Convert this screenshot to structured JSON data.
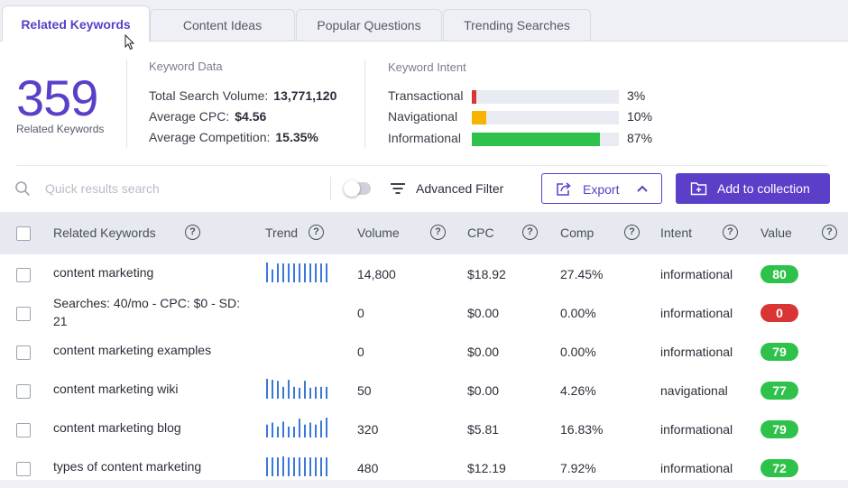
{
  "tabs": [
    {
      "label": "Related Keywords",
      "active": true
    },
    {
      "label": "Content Ideas",
      "active": false
    },
    {
      "label": "Popular Questions",
      "active": false
    },
    {
      "label": "Trending Searches",
      "active": false
    }
  ],
  "summary": {
    "count": "359",
    "count_label": "Related Keywords"
  },
  "keyword_data": {
    "title": "Keyword Data",
    "search_volume_label": "Total Search Volume:",
    "search_volume": "13,771,120",
    "cpc_label": "Average CPC:",
    "cpc": "$4.56",
    "competition_label": "Average Competition:",
    "competition": "15.35%"
  },
  "keyword_intent": {
    "title": "Keyword Intent",
    "items": [
      {
        "label": "Transactional",
        "pct": "3%",
        "fraction": 0.03,
        "color": "#d93535"
      },
      {
        "label": "Navigational",
        "pct": "10%",
        "fraction": 0.1,
        "color": "#f5b400"
      },
      {
        "label": "Informational",
        "pct": "87%",
        "fraction": 0.87,
        "color": "#2ec24a"
      }
    ]
  },
  "toolbar": {
    "search_placeholder": "Quick results search",
    "filter_label": "Advanced Filter",
    "export_label": "Export",
    "add_label": "Add to collection"
  },
  "table": {
    "headers": {
      "keyword": "Related Keywords",
      "trend": "Trend",
      "volume": "Volume",
      "cpc": "CPC",
      "comp": "Comp",
      "intent": "Intent",
      "value": "Value"
    },
    "rows": [
      {
        "keyword": "content marketing",
        "volume": "14,800",
        "cpc": "$18.92",
        "comp": "27.45%",
        "intent": "informational",
        "value": "80",
        "value_color": "#2ec24a",
        "trend": [
          1.0,
          0.65,
          0.95,
          0.95,
          0.95,
          0.95,
          0.95,
          0.95,
          0.95,
          0.95,
          0.95,
          0.95
        ]
      },
      {
        "keyword": "Searches: 40/mo - CPC: $0 - SD: 21",
        "volume": "0",
        "cpc": "$0.00",
        "comp": "0.00%",
        "intent": "informational",
        "value": "0",
        "value_color": "#d93535",
        "trend": []
      },
      {
        "keyword": "content marketing examples",
        "volume": "0",
        "cpc": "$0.00",
        "comp": "0.00%",
        "intent": "informational",
        "value": "79",
        "value_color": "#2ec24a",
        "trend": []
      },
      {
        "keyword": "content marketing wiki",
        "volume": "50",
        "cpc": "$0.00",
        "comp": "4.26%",
        "intent": "navigational",
        "value": "77",
        "value_color": "#2ec24a",
        "trend": [
          1.0,
          0.95,
          0.9,
          0.6,
          0.95,
          0.6,
          0.55,
          0.9,
          0.55,
          0.6,
          0.6,
          0.6
        ]
      },
      {
        "keyword": "content marketing blog",
        "volume": "320",
        "cpc": "$5.81",
        "comp": "16.83%",
        "intent": "informational",
        "value": "79",
        "value_color": "#2ec24a",
        "trend": [
          0.65,
          0.75,
          0.55,
          0.8,
          0.55,
          0.55,
          0.95,
          0.65,
          0.75,
          0.65,
          0.85,
          1.0
        ]
      },
      {
        "keyword": "types of content marketing",
        "volume": "480",
        "cpc": "$12.19",
        "comp": "7.92%",
        "intent": "informational",
        "value": "72",
        "value_color": "#2ec24a",
        "trend": [
          0.95,
          0.95,
          0.95,
          1.0,
          0.95,
          0.95,
          0.95,
          0.95,
          0.95,
          0.95,
          0.95,
          0.95
        ]
      }
    ]
  }
}
